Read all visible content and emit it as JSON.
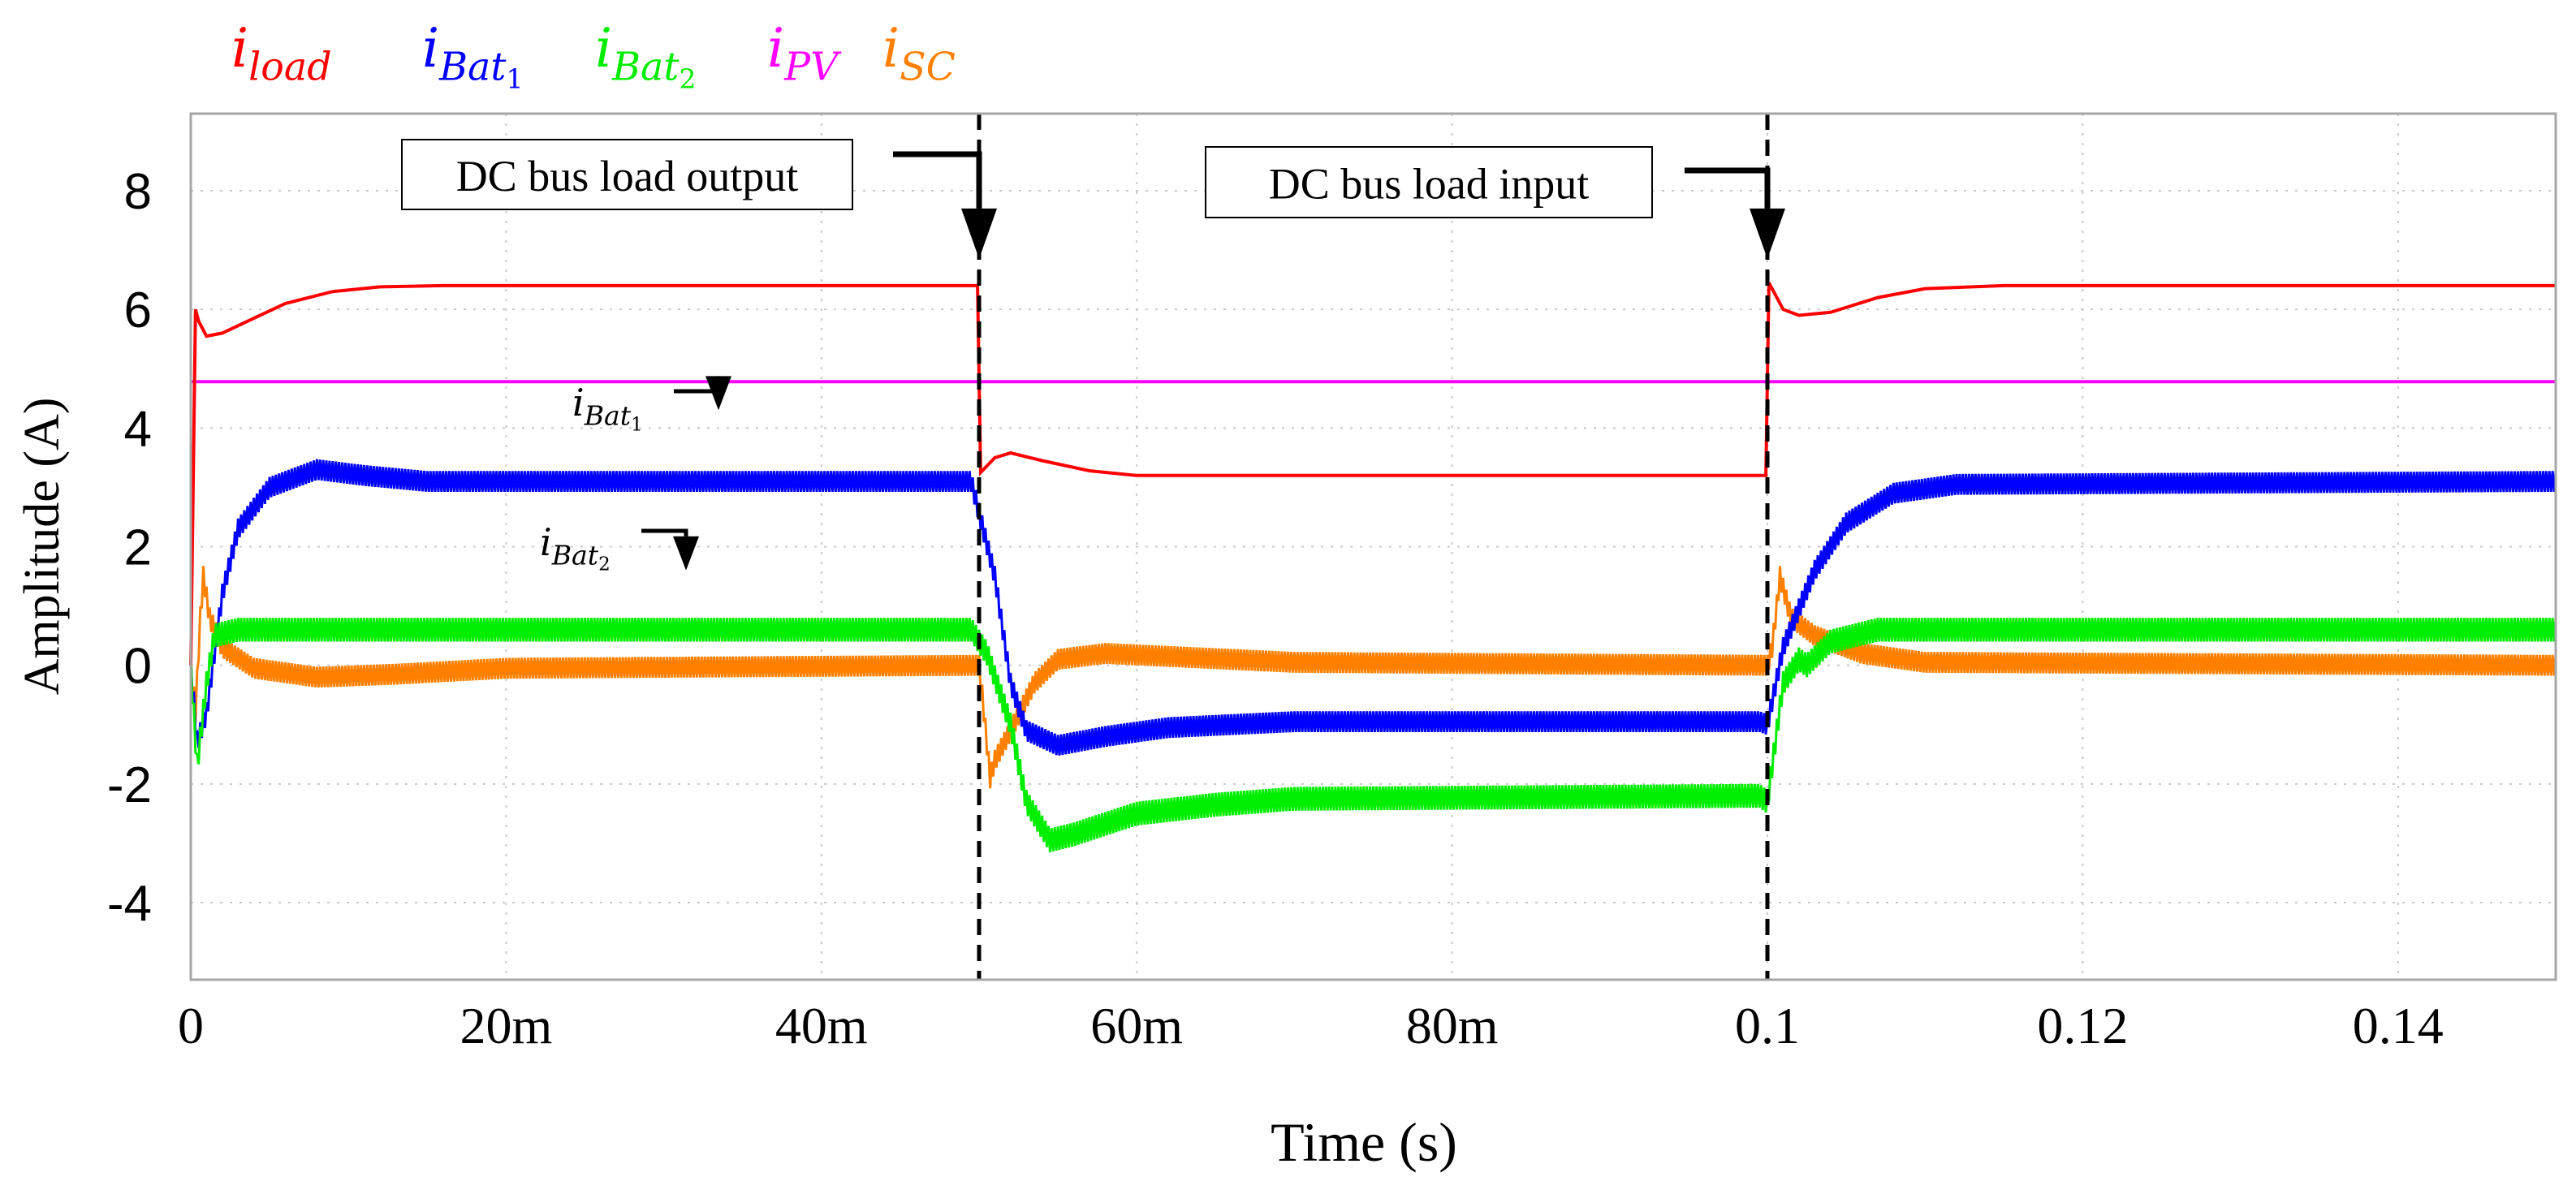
{
  "chart_data": {
    "type": "line",
    "xlabel": "Time (s)",
    "ylabel": "Amplitude (A)",
    "xlim": [
      0,
      0.15
    ],
    "ylim": [
      -5.3,
      9.3
    ],
    "xticks": [
      {
        "value": 0,
        "label": "0"
      },
      {
        "value": 0.02,
        "label": "20m"
      },
      {
        "value": 0.04,
        "label": "40m"
      },
      {
        "value": 0.06,
        "label": "60m"
      },
      {
        "value": 0.08,
        "label": "80m"
      },
      {
        "value": 0.1,
        "label": "0.1"
      },
      {
        "value": 0.12,
        "label": "0.12"
      },
      {
        "value": 0.14,
        "label": "0.14"
      }
    ],
    "yticks": [
      {
        "value": 8,
        "label": "8"
      },
      {
        "value": 6,
        "label": "6"
      },
      {
        "value": 4,
        "label": "4"
      },
      {
        "value": 2,
        "label": "2"
      },
      {
        "value": 0,
        "label": "0"
      },
      {
        "value": -2,
        "label": "-2"
      },
      {
        "value": -4,
        "label": "-4"
      }
    ],
    "grid": "dotted",
    "legend_position": "top-left-outside",
    "legend": [
      {
        "base": "i",
        "sub": "load",
        "subsub": "",
        "color": "#ff0000"
      },
      {
        "base": "i",
        "sub": "Bat",
        "subsub": "1",
        "color": "#0000ff"
      },
      {
        "base": "i",
        "sub": "Bat",
        "subsub": "2",
        "color": "#00ee00"
      },
      {
        "base": "i",
        "sub": "PV",
        "subsub": "",
        "color": "#ff00ff"
      },
      {
        "base": "i",
        "sub": "SC",
        "subsub": "",
        "color": "#ff8000"
      }
    ],
    "events": [
      {
        "t": 0.05,
        "label": "DC bus load output"
      },
      {
        "t": 0.1,
        "label": "DC bus load input"
      }
    ],
    "inline_labels": [
      {
        "base": "i",
        "sub": "Bat",
        "subsub": "1",
        "t": 0.033,
        "value": 4.3
      },
      {
        "base": "i",
        "sub": "Bat",
        "subsub": "2",
        "t": 0.031,
        "value": 1.6
      }
    ],
    "series": [
      {
        "name": "i_load",
        "color": "#ff0000",
        "ripple": 0,
        "points": [
          [
            0,
            0
          ],
          [
            0.0003,
            6.0
          ],
          [
            0.0005,
            5.8
          ],
          [
            0.001,
            5.55
          ],
          [
            0.002,
            5.6
          ],
          [
            0.004,
            5.85
          ],
          [
            0.006,
            6.1
          ],
          [
            0.009,
            6.3
          ],
          [
            0.012,
            6.38
          ],
          [
            0.016,
            6.4
          ],
          [
            0.0499,
            6.4
          ],
          [
            0.0501,
            3.25
          ],
          [
            0.051,
            3.5
          ],
          [
            0.052,
            3.58
          ],
          [
            0.054,
            3.45
          ],
          [
            0.057,
            3.28
          ],
          [
            0.06,
            3.2
          ],
          [
            0.0999,
            3.2
          ],
          [
            0.1001,
            6.45
          ],
          [
            0.101,
            6.0
          ],
          [
            0.102,
            5.9
          ],
          [
            0.104,
            5.95
          ],
          [
            0.107,
            6.2
          ],
          [
            0.11,
            6.35
          ],
          [
            0.115,
            6.4
          ],
          [
            0.15,
            6.4
          ]
        ]
      },
      {
        "name": "i_PV",
        "color": "#ff00ff",
        "ripple": 0,
        "points": [
          [
            0,
            4.78
          ],
          [
            0.15,
            4.78
          ]
        ]
      },
      {
        "name": "i_Bat1",
        "color": "#0000ff",
        "ripple": 0.35,
        "points": [
          [
            0,
            0
          ],
          [
            0.0004,
            -1.3
          ],
          [
            0.001,
            -0.8
          ],
          [
            0.002,
            1.2
          ],
          [
            0.003,
            2.3
          ],
          [
            0.005,
            3.0
          ],
          [
            0.008,
            3.3
          ],
          [
            0.011,
            3.2
          ],
          [
            0.015,
            3.1
          ],
          [
            0.0495,
            3.1
          ],
          [
            0.051,
            1.5
          ],
          [
            0.052,
            -0.3
          ],
          [
            0.053,
            -1.1
          ],
          [
            0.055,
            -1.35
          ],
          [
            0.058,
            -1.2
          ],
          [
            0.062,
            -1.05
          ],
          [
            0.07,
            -0.95
          ],
          [
            0.0995,
            -0.95
          ],
          [
            0.1,
            -1.0
          ],
          [
            0.101,
            0.3
          ],
          [
            0.103,
            1.6
          ],
          [
            0.105,
            2.4
          ],
          [
            0.108,
            2.9
          ],
          [
            0.112,
            3.05
          ],
          [
            0.15,
            3.1
          ]
        ]
      },
      {
        "name": "i_Bat2",
        "color": "#00ee00",
        "ripple": 0.4,
        "points": [
          [
            0,
            0
          ],
          [
            0.0004,
            -1.7
          ],
          [
            0.001,
            -0.3
          ],
          [
            0.0015,
            0.5
          ],
          [
            0.003,
            0.6
          ],
          [
            0.006,
            0.6
          ],
          [
            0.0495,
            0.6
          ],
          [
            0.0505,
            0.2
          ],
          [
            0.052,
            -1.0
          ],
          [
            0.053,
            -2.3
          ],
          [
            0.0545,
            -2.95
          ],
          [
            0.056,
            -2.85
          ],
          [
            0.06,
            -2.5
          ],
          [
            0.065,
            -2.35
          ],
          [
            0.07,
            -2.25
          ],
          [
            0.0995,
            -2.2
          ],
          [
            0.1,
            -2.3
          ],
          [
            0.101,
            -0.3
          ],
          [
            0.102,
            0.1
          ],
          [
            0.1025,
            0.0
          ],
          [
            0.104,
            0.4
          ],
          [
            0.107,
            0.6
          ],
          [
            0.15,
            0.6
          ]
        ]
      },
      {
        "name": "i_SC",
        "color": "#ff8000",
        "ripple": 0.35,
        "points": [
          [
            0,
            0
          ],
          [
            0.0003,
            -0.8
          ],
          [
            0.0006,
            0.8
          ],
          [
            0.0008,
            1.5
          ],
          [
            0.0012,
            0.8
          ],
          [
            0.002,
            0.3
          ],
          [
            0.004,
            -0.05
          ],
          [
            0.008,
            -0.2
          ],
          [
            0.013,
            -0.15
          ],
          [
            0.02,
            -0.05
          ],
          [
            0.05,
            0.0
          ],
          [
            0.0502,
            -0.5
          ],
          [
            0.0507,
            -1.9
          ],
          [
            0.051,
            -1.6
          ],
          [
            0.052,
            -1.1
          ],
          [
            0.0535,
            -0.3
          ],
          [
            0.055,
            0.1
          ],
          [
            0.058,
            0.2
          ],
          [
            0.062,
            0.15
          ],
          [
            0.07,
            0.05
          ],
          [
            0.1,
            0.0
          ],
          [
            0.1003,
            0.3
          ],
          [
            0.1008,
            1.5
          ],
          [
            0.1015,
            0.8
          ],
          [
            0.103,
            0.5
          ],
          [
            0.106,
            0.2
          ],
          [
            0.11,
            0.05
          ],
          [
            0.15,
            0.0
          ]
        ]
      }
    ]
  }
}
